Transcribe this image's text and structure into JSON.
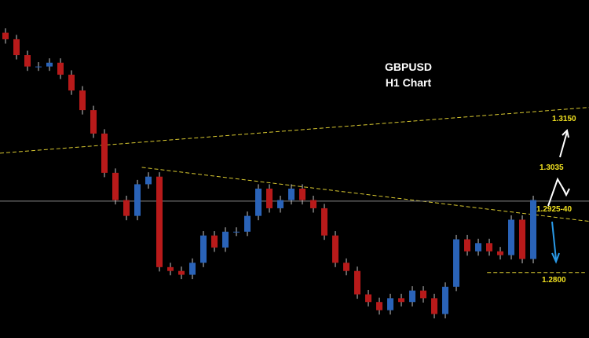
{
  "chart_data": {
    "type": "candlestick",
    "title": "GBPUSD",
    "subtitle": "H1 Chart",
    "ylim": [
      1.268,
      1.33
    ],
    "xlim": [
      -0.5,
      53.07
    ],
    "up_color": "#2a63b8",
    "down_color": "#b81a1a",
    "wick_color": "#c8c8c8",
    "open": [
      1.324,
      1.3228,
      1.3199,
      1.3178,
      1.3178,
      1.3185,
      1.3163,
      1.3134,
      1.3098,
      1.3055,
      1.2983,
      1.2933,
      1.2904,
      1.2962,
      1.2976,
      1.281,
      1.2803,
      1.2796,
      1.2818,
      1.2868,
      1.2846,
      1.2875,
      1.2875,
      1.2904,
      1.2954,
      1.2918,
      1.2933,
      1.2954,
      1.2933,
      1.2918,
      1.2868,
      1.2818,
      1.2803,
      1.276,
      1.2746,
      1.2731,
      1.2753,
      1.2746,
      1.2767,
      1.2753,
      1.2724,
      1.2774,
      1.2861,
      1.2839,
      1.2854,
      1.2839,
      1.2832,
      1.2897,
      1.2825
    ],
    "high": [
      1.3248,
      1.3236,
      1.3207,
      1.3186,
      1.3193,
      1.3193,
      1.3171,
      1.3142,
      1.3106,
      1.3063,
      1.2991,
      1.2941,
      1.297,
      1.2984,
      1.2984,
      1.2818,
      1.2811,
      1.2826,
      1.2876,
      1.2876,
      1.2883,
      1.2883,
      1.2912,
      1.2962,
      1.2962,
      1.2941,
      1.2962,
      1.2962,
      1.2941,
      1.2926,
      1.2876,
      1.2826,
      1.2811,
      1.2768,
      1.2754,
      1.2761,
      1.2761,
      1.2775,
      1.2775,
      1.2761,
      1.2782,
      1.2869,
      1.2869,
      1.2862,
      1.2862,
      1.2847,
      1.2905,
      1.2905,
      1.2941
    ],
    "low": [
      1.322,
      1.3191,
      1.317,
      1.317,
      1.317,
      1.3155,
      1.3126,
      1.309,
      1.3047,
      1.2975,
      1.2925,
      1.2896,
      1.2896,
      1.2954,
      1.2802,
      1.2795,
      1.2788,
      1.2788,
      1.281,
      1.2838,
      1.2838,
      1.2867,
      1.2867,
      1.2896,
      1.291,
      1.291,
      1.2925,
      1.2925,
      1.291,
      1.286,
      1.281,
      1.2795,
      1.2752,
      1.2738,
      1.2723,
      1.2723,
      1.2738,
      1.2738,
      1.2745,
      1.2716,
      1.2716,
      1.2766,
      1.2831,
      1.2831,
      1.2831,
      1.2824,
      1.2824,
      1.2817,
      1.2817
    ],
    "close": [
      1.3228,
      1.3199,
      1.3178,
      1.3178,
      1.3185,
      1.3163,
      1.3134,
      1.3098,
      1.3055,
      1.2983,
      1.2933,
      1.2904,
      1.2962,
      1.2976,
      1.281,
      1.2803,
      1.2796,
      1.2818,
      1.2868,
      1.2846,
      1.2875,
      1.2875,
      1.2904,
      1.2954,
      1.2918,
      1.2933,
      1.2954,
      1.2933,
      1.2918,
      1.2868,
      1.2818,
      1.2803,
      1.276,
      1.2746,
      1.2731,
      1.2753,
      1.2746,
      1.2767,
      1.2753,
      1.2724,
      1.2774,
      1.2861,
      1.2839,
      1.2854,
      1.2839,
      1.2832,
      1.2897,
      1.2825,
      1.2933
    ],
    "trendlines": [
      {
        "x": [
          -0.5,
          53.07
        ],
        "y": [
          1.3019,
          1.3103
        ],
        "color": "#d8c830"
      },
      {
        "x": [
          12.4,
          53.07
        ],
        "y": [
          1.2993,
          1.2894
        ],
        "color": "#d8c830"
      },
      {
        "x": [
          -0.5,
          53.07
        ],
        "y": [
          1.2931,
          1.2931
        ],
        "color": "#8a8a8a"
      },
      {
        "x": [
          43.8,
          52.7
        ],
        "y": [
          1.28,
          1.28
        ],
        "color": "#d8c830"
      }
    ],
    "annotations": [
      "1.3150",
      "1.3035",
      "1.2925-40",
      "1.2800"
    ]
  }
}
